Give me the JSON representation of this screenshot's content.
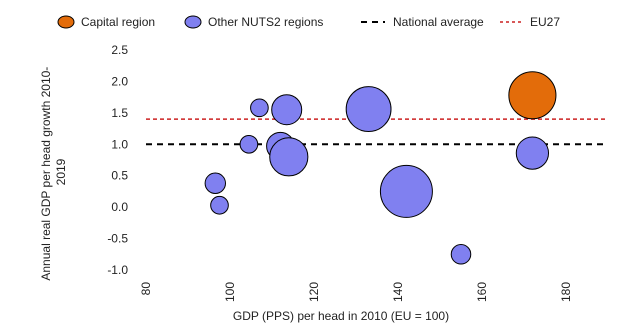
{
  "chart_data": {
    "type": "scatter",
    "xlabel": "GDP (PPS) per head in 2010 (EU = 100)",
    "ylabel_lines": [
      "Annual real GDP per head growth 2010-",
      "2019"
    ],
    "xlim": [
      80,
      190
    ],
    "ylim": [
      -1.0,
      2.5
    ],
    "xticks": [
      80,
      100,
      120,
      140,
      160,
      180
    ],
    "xtick_labels": [
      "80",
      "100",
      "120",
      "140",
      "160",
      "180"
    ],
    "yticks": [
      -1.0,
      -0.5,
      0.0,
      0.5,
      1.0,
      1.5,
      2.0,
      2.5
    ],
    "ytick_labels": [
      "-1.0",
      "-0.5",
      "0.0",
      "0.5",
      "1.0",
      "1.5",
      "2.0",
      "2.5"
    ],
    "grid": false,
    "legend_position": "top",
    "legend": [
      {
        "label": "Capital region",
        "kind": "bubble",
        "color": "#E36C0A"
      },
      {
        "label": "Other NUTS2 regions",
        "kind": "bubble",
        "color": "#8080F0"
      },
      {
        "label": "National average",
        "kind": "dashed-line",
        "color": "#000000"
      },
      {
        "label": "EU27",
        "kind": "dashed-line",
        "color": "#CC2020"
      }
    ],
    "reference_lines": [
      {
        "label": "National average",
        "y": 1.0,
        "color": "#000000"
      },
      {
        "label": "EU27",
        "y": 1.4,
        "color": "#CC2020"
      }
    ],
    "series": [
      {
        "name": "Capital region",
        "color": "#E36C0A",
        "points": [
          {
            "x": 172,
            "y": 1.78,
            "size": 3.2
          }
        ]
      },
      {
        "name": "Other NUTS2 regions",
        "color": "#8080F0",
        "points": [
          {
            "x": 96.5,
            "y": 0.38,
            "size": 0.6
          },
          {
            "x": 97.5,
            "y": 0.03,
            "size": 0.45
          },
          {
            "x": 104.5,
            "y": 1.0,
            "size": 0.45
          },
          {
            "x": 107,
            "y": 1.58,
            "size": 0.45
          },
          {
            "x": 112,
            "y": 0.97,
            "size": 1.1
          },
          {
            "x": 113.5,
            "y": 1.55,
            "size": 1.3
          },
          {
            "x": 114,
            "y": 0.8,
            "size": 2.1
          },
          {
            "x": 133,
            "y": 1.56,
            "size": 2.9
          },
          {
            "x": 142,
            "y": 0.25,
            "size": 3.9
          },
          {
            "x": 155,
            "y": -0.75,
            "size": 0.55
          },
          {
            "x": 172,
            "y": 0.86,
            "size": 1.5
          }
        ]
      }
    ]
  }
}
